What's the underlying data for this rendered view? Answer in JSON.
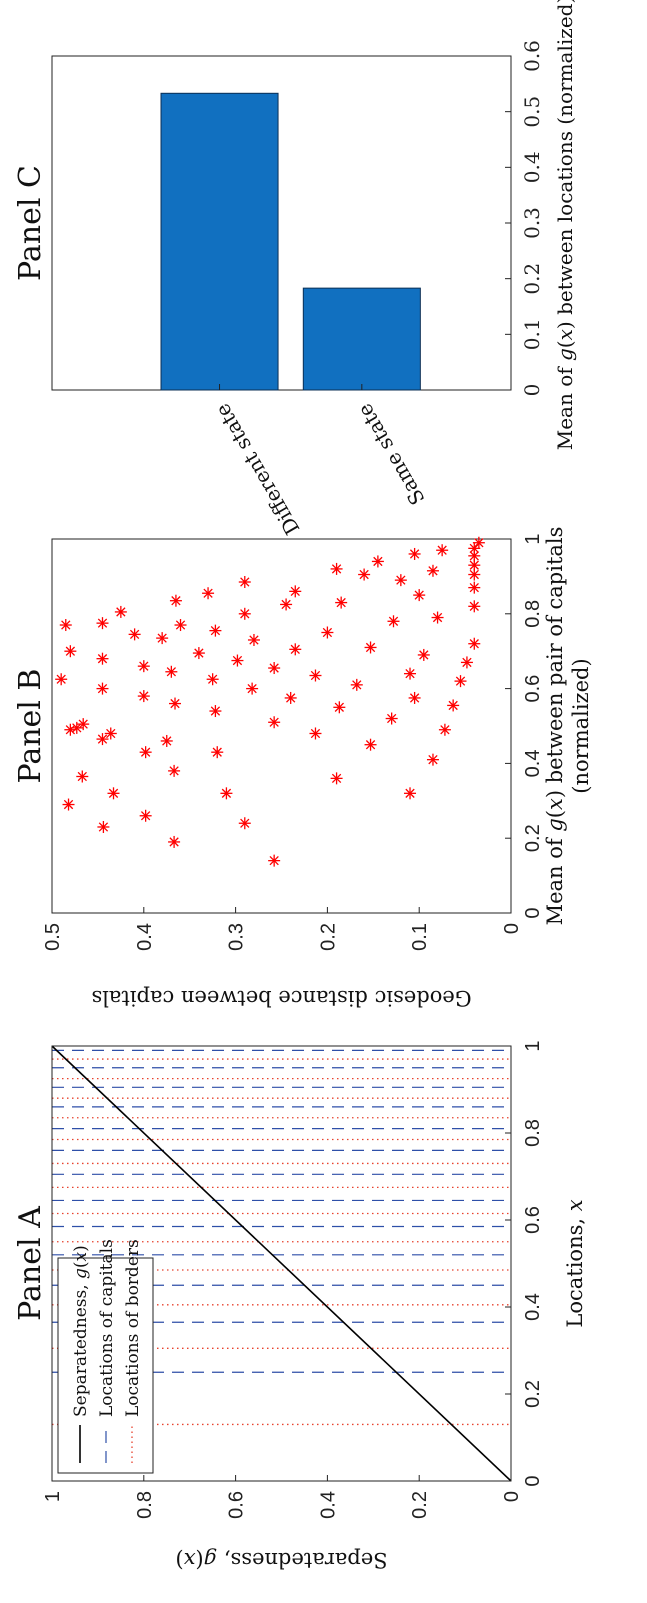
{
  "chart_data": [
    {
      "type": "line",
      "panel": "Panel A",
      "title": "Panel A",
      "xlabel": "Locations, x",
      "ylabel": "Separatedness, g(x)",
      "xlim": [
        0,
        1
      ],
      "ylim": [
        0,
        1
      ],
      "xticks": [
        "0",
        "0.2",
        "0.4",
        "0.6",
        "0.8",
        "1"
      ],
      "yticks": [
        "0",
        "0.2",
        "0.4",
        "0.6",
        "0.8",
        "1"
      ],
      "series": [
        {
          "name": "Separatedness, g(x)",
          "style": "solid",
          "color": "#000000",
          "x": [
            0,
            1
          ],
          "y": [
            0,
            1
          ]
        },
        {
          "name": "Locations of capitals",
          "style": "dashed",
          "color": "#2e4fa8",
          "x": [
            0.25,
            0.365,
            0.45,
            0.52,
            0.585,
            0.645,
            0.705,
            0.76,
            0.81,
            0.86,
            0.905,
            0.95,
            0.99
          ]
        },
        {
          "name": "Locations of borders",
          "style": "dotted",
          "color": "#e8412c",
          "x": [
            0.13,
            0.305,
            0.405,
            0.485,
            0.55,
            0.615,
            0.675,
            0.73,
            0.785,
            0.835,
            0.88,
            0.925,
            0.97
          ]
        }
      ],
      "legend": "top-left"
    },
    {
      "type": "scatter",
      "panel": "Panel B",
      "title": "Panel B",
      "xlabel": "Mean of g(x) between pair of capitals",
      "xlabel2": "(normalized)",
      "ylabel": "Geodesic distance between capitals",
      "xlim": [
        0,
        1
      ],
      "ylim": [
        0,
        0.5
      ],
      "xticks": [
        "0",
        "0.2",
        "0.4",
        "0.6",
        "0.8",
        "1"
      ],
      "yticks": [
        "0",
        "0.1",
        "0.2",
        "0.3",
        "0.4",
        "0.5"
      ],
      "marker_color": "#ff0000",
      "points": [
        [
          0.14,
          0.258
        ],
        [
          0.19,
          0.367
        ],
        [
          0.24,
          0.29
        ],
        [
          0.23,
          0.444
        ],
        [
          0.29,
          0.482
        ],
        [
          0.26,
          0.398
        ],
        [
          0.32,
          0.31
        ],
        [
          0.32,
          0.433
        ],
        [
          0.365,
          0.467
        ],
        [
          0.38,
          0.367
        ],
        [
          0.43,
          0.32
        ],
        [
          0.43,
          0.398
        ],
        [
          0.46,
          0.375
        ],
        [
          0.48,
          0.436
        ],
        [
          0.465,
          0.445
        ],
        [
          0.49,
          0.48
        ],
        [
          0.495,
          0.473
        ],
        [
          0.51,
          0.258
        ],
        [
          0.505,
          0.466
        ],
        [
          0.32,
          0.11
        ],
        [
          0.36,
          0.19
        ],
        [
          0.41,
          0.085
        ],
        [
          0.45,
          0.153
        ],
        [
          0.48,
          0.213
        ],
        [
          0.49,
          0.072
        ],
        [
          0.52,
          0.13
        ],
        [
          0.54,
          0.322
        ],
        [
          0.55,
          0.187
        ],
        [
          0.555,
          0.063
        ],
        [
          0.56,
          0.366
        ],
        [
          0.575,
          0.105
        ],
        [
          0.575,
          0.24
        ],
        [
          0.58,
          0.4
        ],
        [
          0.6,
          0.445
        ],
        [
          0.6,
          0.282
        ],
        [
          0.61,
          0.168
        ],
        [
          0.62,
          0.055
        ],
        [
          0.625,
          0.325
        ],
        [
          0.625,
          0.49
        ],
        [
          0.635,
          0.213
        ],
        [
          0.64,
          0.11
        ],
        [
          0.645,
          0.37
        ],
        [
          0.655,
          0.258
        ],
        [
          0.66,
          0.4
        ],
        [
          0.67,
          0.048
        ],
        [
          0.675,
          0.298
        ],
        [
          0.68,
          0.445
        ],
        [
          0.69,
          0.095
        ],
        [
          0.695,
          0.34
        ],
        [
          0.7,
          0.48
        ],
        [
          0.705,
          0.235
        ],
        [
          0.71,
          0.153
        ],
        [
          0.72,
          0.04
        ],
        [
          0.73,
          0.28
        ],
        [
          0.735,
          0.38
        ],
        [
          0.745,
          0.41
        ],
        [
          0.75,
          0.2
        ],
        [
          0.755,
          0.322
        ],
        [
          0.77,
          0.485
        ],
        [
          0.77,
          0.36
        ],
        [
          0.78,
          0.128
        ],
        [
          0.775,
          0.445
        ],
        [
          0.79,
          0.08
        ],
        [
          0.8,
          0.29
        ],
        [
          0.805,
          0.425
        ],
        [
          0.82,
          0.04
        ],
        [
          0.825,
          0.245
        ],
        [
          0.83,
          0.185
        ],
        [
          0.835,
          0.365
        ],
        [
          0.85,
          0.1
        ],
        [
          0.855,
          0.33
        ],
        [
          0.86,
          0.235
        ],
        [
          0.87,
          0.04
        ],
        [
          0.885,
          0.29
        ],
        [
          0.89,
          0.12
        ],
        [
          0.905,
          0.16
        ],
        [
          0.905,
          0.04
        ],
        [
          0.915,
          0.085
        ],
        [
          0.92,
          0.19
        ],
        [
          0.93,
          0.04
        ],
        [
          0.94,
          0.145
        ],
        [
          0.955,
          0.04
        ],
        [
          0.96,
          0.105
        ],
        [
          0.97,
          0.075
        ],
        [
          0.975,
          0.04
        ],
        [
          0.99,
          0.035
        ]
      ]
    },
    {
      "type": "bar",
      "orientation": "horizontal",
      "panel": "Panel C",
      "title": "Panel C",
      "xlabel": "Mean of g(x) between locations (normalized)",
      "xlim": [
        0,
        0.6
      ],
      "xticks": [
        "0",
        "0.1",
        "0.2",
        "0.3",
        "0.4",
        "0.5",
        "0.6"
      ],
      "categories": [
        "Different state",
        "Same state"
      ],
      "values": [
        0.533,
        0.183
      ],
      "bar_color": "#1170c0"
    }
  ]
}
